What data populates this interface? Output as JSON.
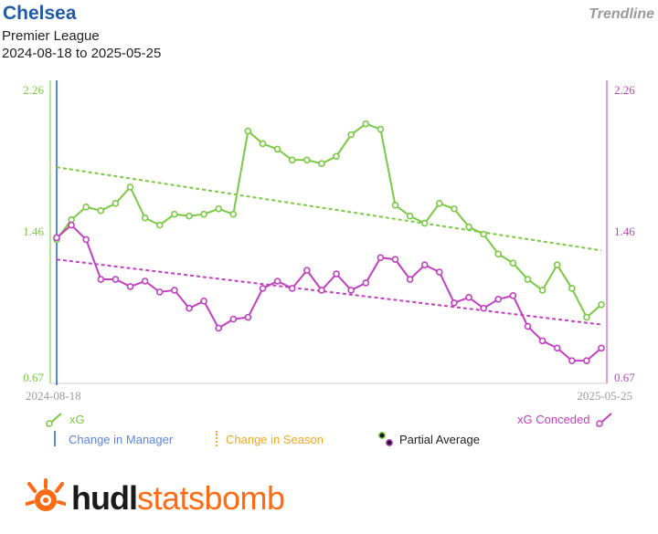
{
  "header": {
    "team": "Chelsea",
    "competition": "Premier League",
    "date_range": "2024-08-18 to 2025-05-25",
    "view_mode": "Trendline"
  },
  "chart_data": {
    "type": "line",
    "x_start_label": "2024-08-18",
    "x_end_label": "2025-05-25",
    "left_axis": {
      "ticks": [
        "2.26",
        "1.46",
        "0.67"
      ],
      "range": [
        0.67,
        2.26
      ]
    },
    "right_axis": {
      "ticks": [
        "2.26",
        "1.46",
        "0.67"
      ],
      "range": [
        0.67,
        2.26
      ]
    },
    "grid": false,
    "series": [
      {
        "name": "xG",
        "color": "#7ac943",
        "values": [
          1.43,
          1.54,
          1.61,
          1.59,
          1.63,
          1.72,
          1.55,
          1.51,
          1.57,
          1.56,
          1.57,
          1.6,
          1.57,
          2.03,
          1.96,
          1.93,
          1.87,
          1.87,
          1.85,
          1.89,
          2.01,
          2.07,
          2.04,
          1.62,
          1.56,
          1.52,
          1.63,
          1.6,
          1.5,
          1.46,
          1.35,
          1.3,
          1.21,
          1.15,
          1.29,
          1.16,
          1.0,
          1.07
        ],
        "trend": [
          1.83,
          1.37
        ]
      },
      {
        "name": "xG Conceded",
        "color": "#c23fc2",
        "values": [
          1.44,
          1.51,
          1.43,
          1.21,
          1.21,
          1.17,
          1.2,
          1.14,
          1.15,
          1.05,
          1.09,
          0.94,
          0.99,
          1.0,
          1.16,
          1.2,
          1.16,
          1.26,
          1.15,
          1.24,
          1.15,
          1.19,
          1.33,
          1.32,
          1.21,
          1.29,
          1.25,
          1.08,
          1.11,
          1.05,
          1.1,
          1.12,
          0.95,
          0.87,
          0.83,
          0.76,
          0.76,
          0.83
        ],
        "trend": [
          1.32,
          0.96
        ]
      }
    ]
  },
  "legend": {
    "xg": "xG",
    "xg_conceded": "xG Conceded",
    "change_manager": "Change in Manager",
    "change_season": "Change in Season",
    "partial_average": "Partial Average",
    "manager_color": "#5b86e5",
    "season_color": "#f5a623"
  },
  "brand": {
    "part1": "hudl",
    "part2": "statsbomb",
    "accent": "#ff6a13"
  }
}
